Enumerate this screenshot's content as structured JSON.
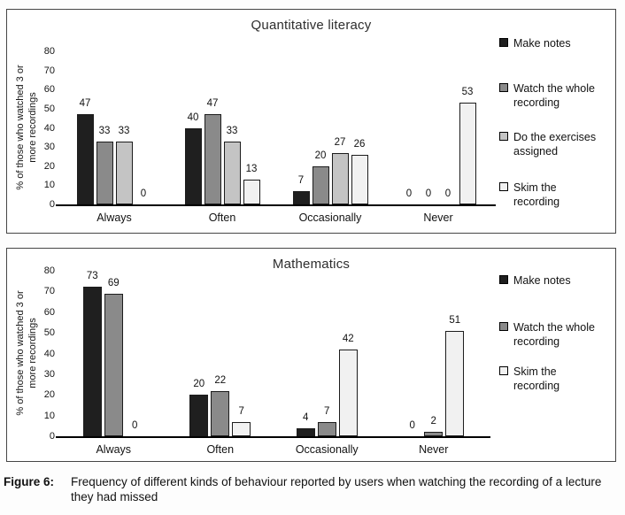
{
  "figure": {
    "caption_label": "Figure 6:",
    "caption_text": "Frequency of different kinds of behaviour reported by users when watching the recording of a lecture they had missed"
  },
  "colors": {
    "make_notes": "#1f1f1f",
    "watch_whole_recording": "#8a8a8a",
    "do_exercises": "#c4c4c4",
    "skim_recording": "#f1f1f1",
    "bar_border": "#1c1c1c",
    "axis": "#000000",
    "panel_border": "#454545"
  },
  "chart_data": [
    {
      "type": "bar",
      "title": "Quantitative literacy",
      "ylabel": "% of those who watched 3 or more recordings",
      "xlabel": "",
      "ylim": [
        0,
        80
      ],
      "ytick_step": 10,
      "grid": false,
      "data_labels": true,
      "legend_position": "right",
      "categories": [
        "Always",
        "Often",
        "Occasionally",
        "Never"
      ],
      "series": [
        {
          "name": "Make notes",
          "color": "#1f1f1f",
          "values": [
            47,
            40,
            7,
            0
          ]
        },
        {
          "name": "Watch the whole recording",
          "color": "#8a8a8a",
          "values": [
            33,
            47,
            20,
            0
          ]
        },
        {
          "name": "Do the exercises assigned",
          "color": "#c4c4c4",
          "values": [
            33,
            33,
            27,
            0
          ]
        },
        {
          "name": "Skim the recording",
          "color": "#f1f1f1",
          "values": [
            0,
            13,
            26,
            53
          ]
        }
      ]
    },
    {
      "type": "bar",
      "title": "Mathematics",
      "ylabel": "% of those who watched 3 or more recordings",
      "xlabel": "",
      "ylim": [
        0,
        80
      ],
      "ytick_step": 10,
      "grid": false,
      "data_labels": true,
      "legend_position": "right",
      "categories": [
        "Always",
        "Often",
        "Occasionally",
        "Never"
      ],
      "series": [
        {
          "name": "Make notes",
          "color": "#1f1f1f",
          "values": [
            73,
            20,
            4,
            0
          ]
        },
        {
          "name": "Watch the whole recording",
          "color": "#8a8a8a",
          "values": [
            69,
            22,
            7,
            2
          ]
        },
        {
          "name": "Skim the recording",
          "color": "#f1f1f1",
          "values": [
            0,
            7,
            42,
            51
          ]
        }
      ]
    }
  ]
}
